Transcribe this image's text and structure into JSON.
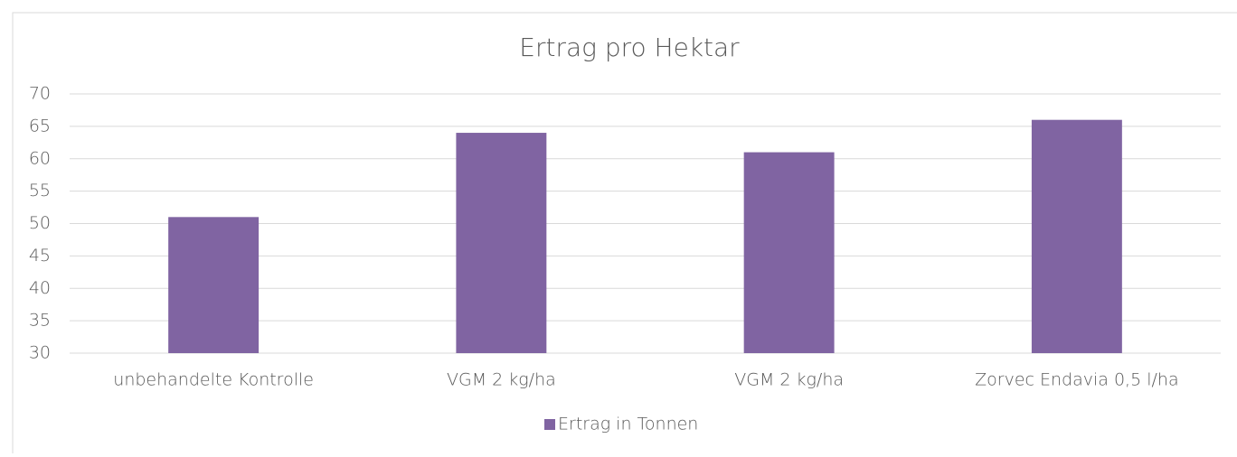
{
  "chart_data": {
    "type": "bar",
    "title": "Ertrag pro Hektar",
    "categories": [
      "unbehandelte Kontrolle",
      "VGM 2 kg/ha",
      "VGM 2 kg/ha",
      "Zorvec Endavia 0,5 l/ha"
    ],
    "series": [
      {
        "name": "Ertrag in Tonnen",
        "color": "#8064a2",
        "values": [
          51,
          64,
          61,
          66
        ]
      }
    ],
    "ylim": [
      30,
      70
    ],
    "yticks": [
      30,
      35,
      40,
      45,
      50,
      55,
      60,
      65,
      70
    ],
    "grid": true,
    "legend": "bottom"
  }
}
